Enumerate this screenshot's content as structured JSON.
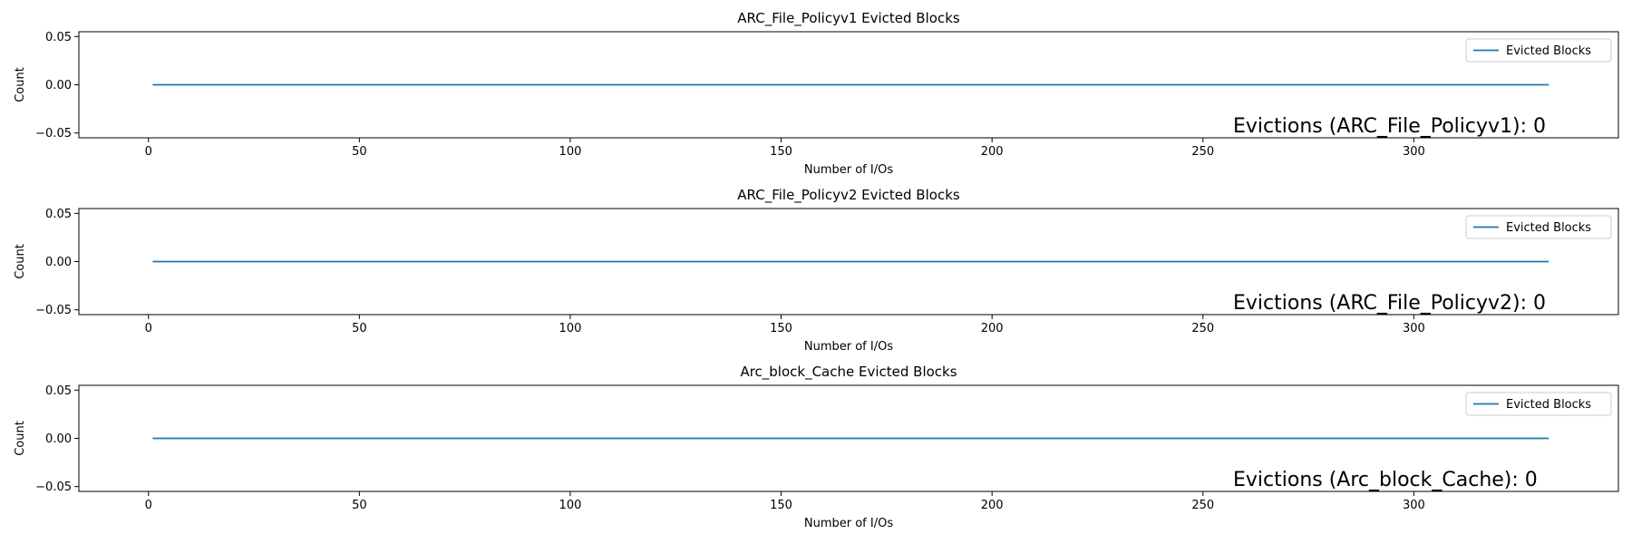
{
  "chart_data": [
    {
      "type": "line",
      "title": "ARC_File_Policyv1 Evicted Blocks",
      "xlabel": "Number of I/Os",
      "ylabel": "Count",
      "xlim": [
        -16.5,
        348.5
      ],
      "ylim": [
        -0.055,
        0.055
      ],
      "xticks": [
        0,
        50,
        100,
        150,
        200,
        250,
        300
      ],
      "xtick_labels": [
        "0",
        "50",
        "100",
        "150",
        "200",
        "250",
        "300"
      ],
      "yticks": [
        0.05,
        0,
        -0.05
      ],
      "ytick_labels": [
        "0.05",
        "0.00",
        "−0.05"
      ],
      "grid": false,
      "legend_position": "top-right",
      "series": [
        {
          "name": "Evicted Blocks",
          "color": "#1f77b4",
          "x": [
            1,
            332
          ],
          "values": [
            0,
            0
          ]
        }
      ],
      "annotation": "Evictions (ARC_File_Policyv1): 0"
    },
    {
      "type": "line",
      "title": "ARC_File_Policyv2 Evicted Blocks",
      "xlabel": "Number of I/Os",
      "ylabel": "Count",
      "xlim": [
        -16.5,
        348.5
      ],
      "ylim": [
        -0.055,
        0.055
      ],
      "xticks": [
        0,
        50,
        100,
        150,
        200,
        250,
        300
      ],
      "xtick_labels": [
        "0",
        "50",
        "100",
        "150",
        "200",
        "250",
        "300"
      ],
      "yticks": [
        0.05,
        0,
        -0.05
      ],
      "ytick_labels": [
        "0.05",
        "0.00",
        "−0.05"
      ],
      "grid": false,
      "legend_position": "top-right",
      "series": [
        {
          "name": "Evicted Blocks",
          "color": "#1f77b4",
          "x": [
            1,
            332
          ],
          "values": [
            0,
            0
          ]
        }
      ],
      "annotation": "Evictions (ARC_File_Policyv2): 0"
    },
    {
      "type": "line",
      "title": "Arc_block_Cache Evicted Blocks",
      "xlabel": "Number of I/Os",
      "ylabel": "Count",
      "xlim": [
        -16.5,
        348.5
      ],
      "ylim": [
        -0.055,
        0.055
      ],
      "xticks": [
        0,
        50,
        100,
        150,
        200,
        250,
        300
      ],
      "xtick_labels": [
        "0",
        "50",
        "100",
        "150",
        "200",
        "250",
        "300"
      ],
      "yticks": [
        0.05,
        0,
        -0.05
      ],
      "ytick_labels": [
        "0.05",
        "0.00",
        "−0.05"
      ],
      "grid": false,
      "legend_position": "top-right",
      "series": [
        {
          "name": "Evicted Blocks",
          "color": "#1f77b4",
          "x": [
            1,
            332
          ],
          "values": [
            0,
            0
          ]
        }
      ],
      "annotation": "Evictions (Arc_block_Cache): 0"
    }
  ]
}
